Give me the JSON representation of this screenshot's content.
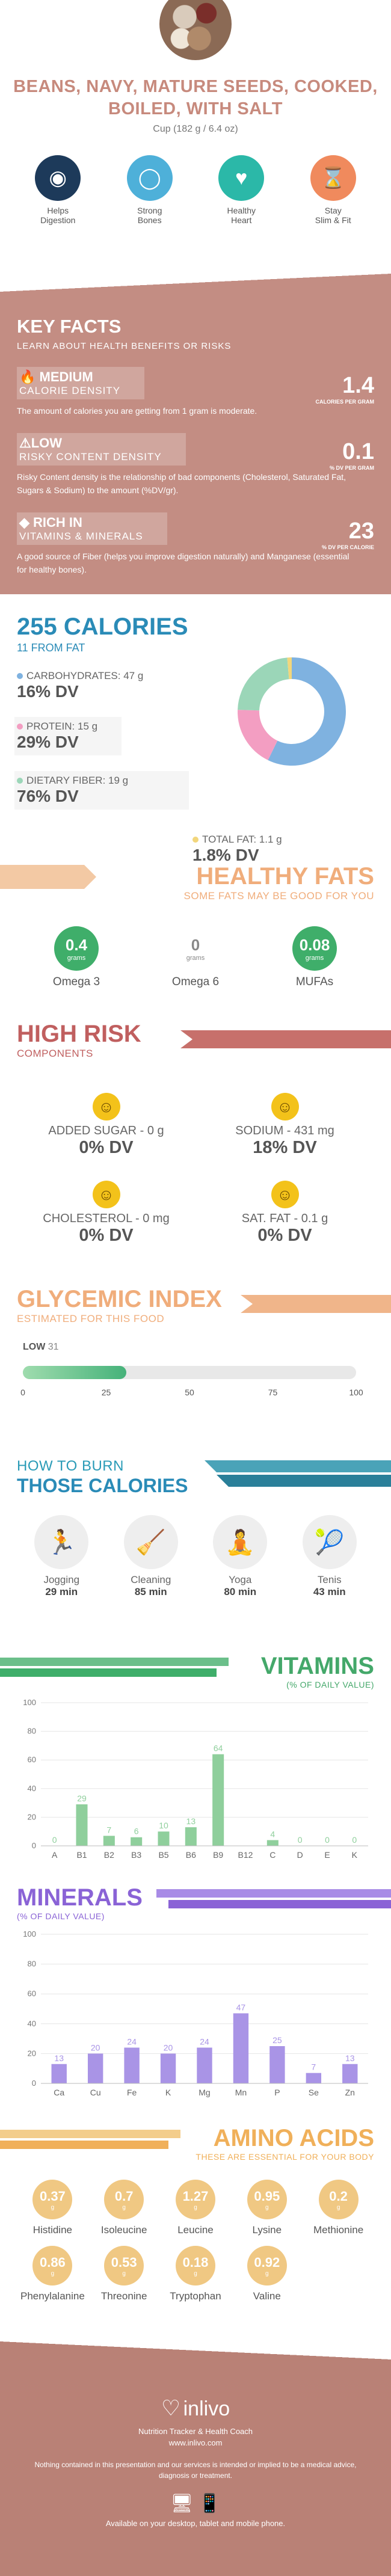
{
  "header": {
    "title": "BEANS, NAVY, MATURE SEEDS, COOKED, BOILED, WITH SALT",
    "serving": "Cup (182 g / 6.4 oz)",
    "benefits": [
      {
        "label": "Helps\nDigestion",
        "icon": "stomach-icon",
        "color": "#1d3a5a"
      },
      {
        "label": "Strong\nBones",
        "icon": "bone-icon",
        "color": "#4eb0d9"
      },
      {
        "label": "Healthy\nHeart",
        "icon": "heart-icon",
        "color": "#2bb8a8"
      },
      {
        "label": "Stay\nSlim & Fit",
        "icon": "waist-icon",
        "color": "#f08a5d"
      }
    ]
  },
  "key_facts": {
    "title": "KEY FACTS",
    "subtitle": "LEARN ABOUT HEALTH BENEFITS OR RISKS",
    "items": [
      {
        "level": "MEDIUM",
        "name": "CALORIE DENSITY",
        "desc": "The amount of calories you are getting from 1 gram is moderate.",
        "value": "1.4",
        "unit": "CALORIES PER GRAM"
      },
      {
        "level": "LOW",
        "name": "RISKY CONTENT DENSITY",
        "desc": "Risky Content density is the relationship of bad components (Cholesterol, Saturated Fat, Sugars & Sodium) to the amount (%DV/gr).",
        "value": "0.1",
        "unit": "% DV PER GRAM"
      },
      {
        "level": "RICH  IN",
        "name": "VITAMINS & MINERALS",
        "desc": "A good source of Fiber (helps you improve digestion naturally) and Manganese (essential for healthy bones).",
        "value": "23",
        "unit": "% DV PER CALORIE"
      }
    ]
  },
  "calories": {
    "title": "255 CALORIES",
    "subtitle": "11 FROM FAT",
    "macros": [
      {
        "name": "CARBOHYDRATES: 47 g",
        "dv": "16% DV",
        "color": "#7fb2e0",
        "value": 47
      },
      {
        "name": "PROTEIN: 15 g",
        "dv": "29% DV",
        "color": "#f39ec2",
        "value": 15
      },
      {
        "name": "DIETARY FIBER: 19 g",
        "dv": "76% DV",
        "color": "#9bd6b8",
        "value": 19
      },
      {
        "name": "TOTAL FAT: 1.1 g",
        "dv": "1.8% DV",
        "color": "#f2d67c",
        "value": 1.1
      }
    ]
  },
  "healthy_fats": {
    "title": "HEALTHY FATS",
    "subtitle": "SOME FATS MAY BE GOOD FOR YOU",
    "items": [
      {
        "value": "0.4",
        "unit": "grams",
        "name": "Omega 3",
        "active": true
      },
      {
        "value": "0",
        "unit": "grams",
        "name": "Omega 6",
        "active": false
      },
      {
        "value": "0.08",
        "unit": "grams",
        "name": "MUFAs",
        "active": true
      }
    ]
  },
  "high_risk": {
    "title": "HIGH RISK",
    "subtitle": "COMPONENTS",
    "items": [
      {
        "name": "ADDED SUGAR - 0 g",
        "dv": "0% DV"
      },
      {
        "name": "SODIUM - 431 mg",
        "dv": "18% DV"
      },
      {
        "name": "CHOLESTEROL - 0 mg",
        "dv": "0% DV"
      },
      {
        "name": "SAT. FAT - 0.1 g",
        "dv": "0% DV"
      }
    ]
  },
  "glycemic": {
    "title": "GLYCEMIC INDEX",
    "subtitle": "ESTIMATED FOR THIS FOOD",
    "level": "LOW",
    "value": 31,
    "value_label": "31",
    "ticks": [
      "0",
      "25",
      "50",
      "75",
      "100"
    ]
  },
  "burn": {
    "title_top": "HOW TO BURN",
    "title_bottom": "THOSE CALORIES",
    "items": [
      {
        "name": "Jogging",
        "minutes": "29 min",
        "icon": "jogging-icon"
      },
      {
        "name": "Cleaning",
        "minutes": "85 min",
        "icon": "cleaning-icon"
      },
      {
        "name": "Yoga",
        "minutes": "80 min",
        "icon": "yoga-icon"
      },
      {
        "name": "Tenis",
        "minutes": "43 min",
        "icon": "tennis-icon"
      }
    ]
  },
  "vitamins_title": "VITAMINS",
  "vitamins_sub": "(% OF DAILY VALUE)",
  "minerals_title": "MINERALS",
  "minerals_sub": "(% OF DAILY VALUE)",
  "chart_data": [
    {
      "type": "bar",
      "title": "VITAMINS",
      "subtitle": "(% OF DAILY VALUE)",
      "categories": [
        "A",
        "B1",
        "B2",
        "B3",
        "B5",
        "B6",
        "B9",
        "B12",
        "C",
        "D",
        "E",
        "K"
      ],
      "values": [
        0,
        29,
        7,
        6,
        10,
        13,
        64,
        0,
        4,
        0,
        0,
        0
      ],
      "labels": [
        "0",
        "29",
        "7",
        "6",
        "10",
        "13",
        "64",
        "",
        "4",
        "0",
        "0",
        "0"
      ],
      "ylim": [
        0,
        100
      ],
      "yticks": [
        "0",
        "20",
        "40",
        "60",
        "80",
        "100"
      ],
      "color": "#8fcf9c",
      "grid": true
    },
    {
      "type": "bar",
      "title": "MINERALS",
      "subtitle": "(% OF DAILY VALUE)",
      "categories": [
        "Ca",
        "Cu",
        "Fe",
        "K",
        "Mg",
        "Mn",
        "P",
        "Se",
        "Zn"
      ],
      "values": [
        13,
        20,
        24,
        20,
        24,
        47,
        25,
        7,
        13
      ],
      "labels": [
        "13",
        "20",
        "24",
        "20",
        "24",
        "47",
        "25",
        "7",
        "13"
      ],
      "ylim": [
        0,
        100
      ],
      "yticks": [
        "0",
        "20",
        "40",
        "60",
        "80",
        "100"
      ],
      "color": "#a994e6",
      "grid": true
    }
  ],
  "amino": {
    "title": "AMINO ACIDS",
    "subtitle": "THESE ARE ESSENTIAL FOR YOUR BODY",
    "items": [
      {
        "value": "0.37",
        "unit": "g",
        "name": "Histidine"
      },
      {
        "value": "0.7",
        "unit": "g",
        "name": "Isoleucine"
      },
      {
        "value": "1.27",
        "unit": "g",
        "name": "Leucine"
      },
      {
        "value": "0.95",
        "unit": "g",
        "name": "Lysine"
      },
      {
        "value": "0.2",
        "unit": "g",
        "name": "Methionine"
      },
      {
        "value": "0.86",
        "unit": "g",
        "name": "Phenylalanine"
      },
      {
        "value": "0.53",
        "unit": "g",
        "name": "Threonine"
      },
      {
        "value": "0.18",
        "unit": "g",
        "name": "Tryptophan"
      },
      {
        "value": "0.92",
        "unit": "g",
        "name": "Valine"
      }
    ]
  },
  "footer": {
    "brand": "inlivo",
    "tagline": "Nutrition Tracker & Health Coach",
    "url": "www.inlivo.com",
    "disclaimer": "Nothing contained in this presentation and our services is intended or implied to be a medical advice, diagnosis or treatment.",
    "available": "Available on your desktop, tablet and mobile phone."
  },
  "colors": {
    "accent_rose": "#c38d83",
    "accent_blue": "#2a8bb7",
    "accent_orange": "#f0ad7b",
    "accent_red": "#c05f5f",
    "accent_teal": "#2a9bb7",
    "accent_green": "#44a86a",
    "accent_purple": "#8a63d6",
    "accent_amber": "#f0b05a"
  }
}
